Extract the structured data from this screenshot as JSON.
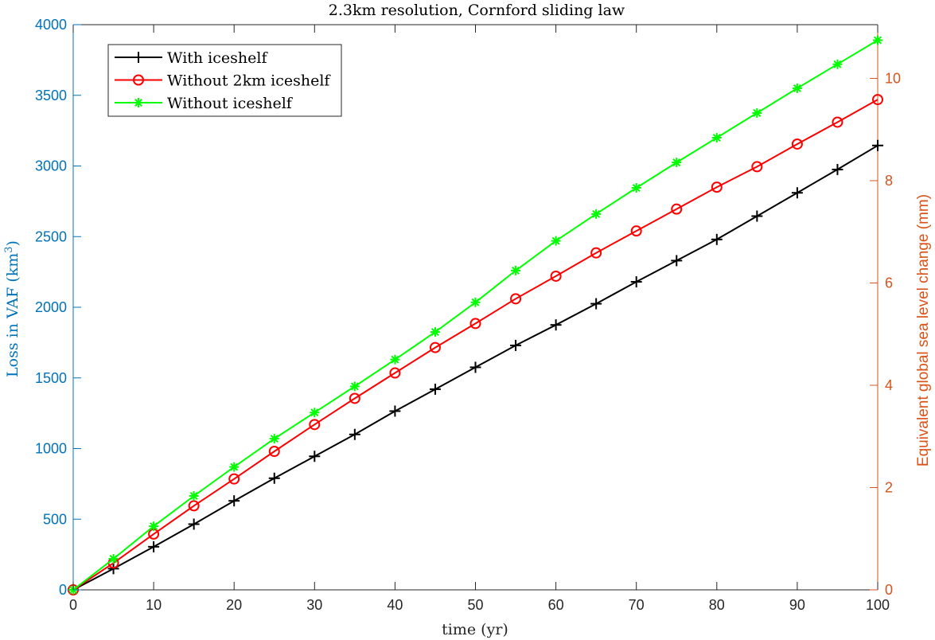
{
  "chart_data": {
    "type": "line",
    "title": "2.3km resolution, Cornford sliding law",
    "xlabel": "time (yr)",
    "ylabel": "Loss in VAF (km",
    "ylabel_superscript": "3",
    "ylabel_suffix": ")",
    "y2label": "Equivalent global sea level change (mm)",
    "xlim": [
      0,
      100
    ],
    "ylim": [
      0,
      4000
    ],
    "y2lim": [
      0,
      11.05
    ],
    "xticks": [
      "0",
      "10",
      "20",
      "30",
      "40",
      "50",
      "60",
      "70",
      "80",
      "90",
      "100"
    ],
    "yticks": [
      "0",
      "500",
      "1000",
      "1500",
      "2000",
      "2500",
      "3000",
      "3500",
      "4000"
    ],
    "y2ticks": [
      "0",
      "2",
      "4",
      "6",
      "8",
      "10"
    ],
    "grid": false,
    "legend_position": "top-left",
    "axis_colors": {
      "left": "#0072BD",
      "right": "#D95319"
    },
    "x": [
      0,
      5,
      10,
      15,
      20,
      25,
      30,
      35,
      40,
      45,
      50,
      55,
      60,
      65,
      70,
      75,
      80,
      85,
      90,
      95,
      100
    ],
    "series": [
      {
        "name": "With iceshelf",
        "color": "#000000",
        "marker": "plus",
        "values": [
          0,
          150,
          305,
          465,
          630,
          790,
          945,
          1100,
          1265,
          1420,
          1575,
          1730,
          1875,
          2025,
          2180,
          2330,
          2480,
          2645,
          2810,
          2975,
          3145
        ]
      },
      {
        "name": "Without 2km iceshelf",
        "color": "#FF0000",
        "marker": "circle",
        "values": [
          0,
          190,
          395,
          595,
          785,
          980,
          1170,
          1355,
          1535,
          1715,
          1885,
          2060,
          2220,
          2385,
          2540,
          2695,
          2850,
          2995,
          3155,
          3310,
          3470
        ]
      },
      {
        "name": "Without iceshelf",
        "color": "#00FF00",
        "marker": "asterisk",
        "values": [
          0,
          220,
          450,
          665,
          870,
          1070,
          1255,
          1440,
          1630,
          1825,
          2035,
          2260,
          2470,
          2660,
          2845,
          3025,
          3200,
          3375,
          3550,
          3720,
          3890
        ]
      }
    ]
  }
}
